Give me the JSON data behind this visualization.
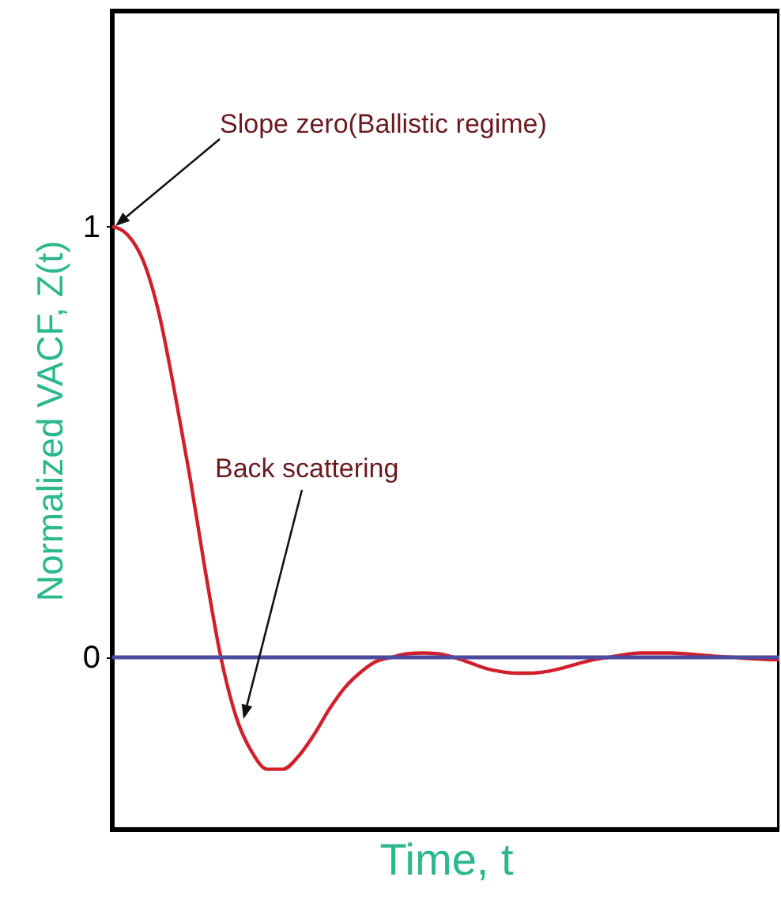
{
  "chart_data": {
    "type": "line",
    "xlabel": "Time, t",
    "ylabel": "Normalized VACF, Z(t)",
    "categories": [
      null,
      null,
      null,
      null,
      null,
      null,
      null,
      null,
      null,
      null,
      null,
      null,
      null,
      null,
      null,
      null,
      null,
      null,
      null,
      null,
      null,
      null,
      null,
      null,
      null,
      null,
      null,
      null,
      null,
      null,
      null,
      null,
      null,
      null,
      null,
      null,
      null,
      null,
      null,
      null,
      null,
      null,
      null,
      null
    ],
    "series": [
      {
        "color": "#d2202a",
        "values": [
          1.0,
          0.98,
          0.92,
          0.8,
          0.62,
          0.42,
          0.2,
          0.0,
          -0.14,
          -0.22,
          -0.26,
          -0.26,
          -0.23,
          -0.18,
          -0.12,
          -0.07,
          -0.035,
          -0.01,
          0.0,
          0.008,
          0.01,
          0.008,
          0.0,
          -0.012,
          -0.025,
          -0.033,
          -0.037,
          -0.037,
          -0.033,
          -0.025,
          -0.015,
          -0.006,
          0.0,
          0.006,
          0.01,
          0.01,
          0.01,
          0.008,
          0.005,
          0.002,
          0.0,
          -0.003,
          -0.005,
          -0.006
        ]
      }
    ],
    "ylim": [
      -0.4,
      1.5
    ],
    "yticks": [
      0,
      1
    ],
    "ref_lines": [
      {
        "axis": "y",
        "value": 0,
        "color": "#4b4ba0"
      }
    ],
    "annotations": [
      "Slope zero(Ballistic regime)",
      "Back scattering"
    ],
    "tick_labels": "y",
    "grid": false
  }
}
